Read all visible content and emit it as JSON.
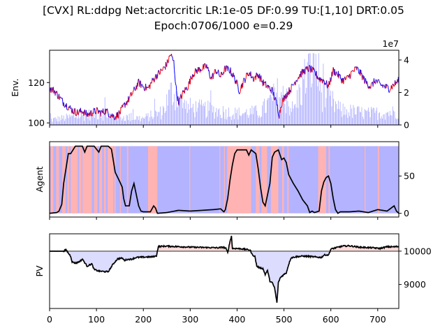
{
  "title_line1": "[CVX] RL:ddpg Net:actorcritic LR:1e-05 DF:0.99 TU:[1,10] DRT:0.05",
  "title_line2": "Epoch:0706/1000 e=0.29",
  "chart_data": [
    {
      "type": "line",
      "panel": "env",
      "ylabel": "Env.",
      "y_ticks": [
        "100",
        "120"
      ],
      "y_tick_values": [
        100,
        120
      ],
      "ylim": [
        99,
        136
      ],
      "right_axis_multiplier": "1e7",
      "right_y_ticks": [
        "0",
        "2",
        "4"
      ],
      "right_y_tick_values": [
        0,
        2,
        4
      ],
      "right_ylim": [
        0,
        4.6
      ],
      "x_tick_values": [
        0,
        100,
        200,
        300,
        400,
        500,
        600,
        700
      ],
      "xlim": [
        0,
        745
      ],
      "colors": {
        "price_up": "#ff0000",
        "price_down": "#0000ff",
        "volume": "#a9a9ff"
      },
      "price_anchor_points": [
        [
          0,
          117
        ],
        [
          10,
          116
        ],
        [
          20,
          113
        ],
        [
          30,
          110
        ],
        [
          40,
          108
        ],
        [
          50,
          106
        ],
        [
          60,
          105
        ],
        [
          70,
          106
        ],
        [
          80,
          104
        ],
        [
          90,
          105
        ],
        [
          100,
          106
        ],
        [
          110,
          105
        ],
        [
          120,
          106
        ],
        [
          130,
          104
        ],
        [
          140,
          103
        ],
        [
          150,
          105
        ],
        [
          160,
          109
        ],
        [
          170,
          112
        ],
        [
          180,
          116
        ],
        [
          190,
          120
        ],
        [
          200,
          118
        ],
        [
          210,
          117
        ],
        [
          220,
          121
        ],
        [
          230,
          124
        ],
        [
          240,
          126
        ],
        [
          250,
          129
        ],
        [
          258,
          134
        ],
        [
          265,
          130
        ],
        [
          270,
          117
        ],
        [
          275,
          110
        ],
        [
          285,
          115
        ],
        [
          295,
          118
        ],
        [
          305,
          124
        ],
        [
          315,
          126
        ],
        [
          325,
          127
        ],
        [
          335,
          128
        ],
        [
          345,
          122
        ],
        [
          355,
          126
        ],
        [
          365,
          123
        ],
        [
          375,
          127
        ],
        [
          385,
          126
        ],
        [
          395,
          122
        ],
        [
          405,
          116
        ],
        [
          415,
          121
        ],
        [
          425,
          125
        ],
        [
          435,
          122
        ],
        [
          445,
          124
        ],
        [
          455,
          120
        ],
        [
          465,
          118
        ],
        [
          475,
          116
        ],
        [
          485,
          109
        ],
        [
          490,
          104
        ],
        [
          495,
          110
        ],
        [
          505,
          114
        ],
        [
          515,
          117
        ],
        [
          525,
          121
        ],
        [
          535,
          124
        ],
        [
          545,
          126
        ],
        [
          555,
          127
        ],
        [
          565,
          125
        ],
        [
          575,
          122
        ],
        [
          585,
          121
        ],
        [
          595,
          118
        ],
        [
          605,
          126
        ],
        [
          615,
          124
        ],
        [
          625,
          121
        ],
        [
          635,
          122
        ],
        [
          645,
          125
        ],
        [
          655,
          127
        ],
        [
          665,
          124
        ],
        [
          675,
          120
        ],
        [
          685,
          118
        ],
        [
          695,
          121
        ],
        [
          705,
          119
        ],
        [
          715,
          118
        ],
        [
          725,
          117
        ],
        [
          735,
          119
        ],
        [
          745,
          121
        ]
      ],
      "volume_anchor_points": [
        [
          0,
          0.3
        ],
        [
          50,
          0.5
        ],
        [
          100,
          0.7
        ],
        [
          150,
          0.5
        ],
        [
          200,
          0.4
        ],
        [
          240,
          0.8
        ],
        [
          262,
          2.1
        ],
        [
          290,
          1.1
        ],
        [
          350,
          0.9
        ],
        [
          400,
          0.7
        ],
        [
          450,
          0.8
        ],
        [
          490,
          2.0
        ],
        [
          520,
          0.9
        ],
        [
          565,
          4.4
        ],
        [
          580,
          2.0
        ],
        [
          620,
          0.9
        ],
        [
          680,
          0.7
        ],
        [
          745,
          0.8
        ]
      ]
    },
    {
      "type": "line",
      "panel": "agent",
      "ylabel": "Agent",
      "right_y_ticks": [
        "0",
        "50"
      ],
      "right_y_tick_values": [
        0,
        50
      ],
      "ylim": [
        -5,
        96
      ],
      "xlim": [
        0,
        745
      ],
      "colors": {
        "line": "#000000",
        "buy_band": "#ffb3b3",
        "sell_band": "#b3b3ff"
      },
      "position_anchor_points": [
        [
          0,
          0
        ],
        [
          15,
          1
        ],
        [
          20,
          3
        ],
        [
          26,
          12
        ],
        [
          30,
          40
        ],
        [
          35,
          60
        ],
        [
          40,
          80
        ],
        [
          45,
          80
        ],
        [
          55,
          90
        ],
        [
          70,
          90
        ],
        [
          75,
          82
        ],
        [
          80,
          90
        ],
        [
          95,
          90
        ],
        [
          105,
          82
        ],
        [
          110,
          90
        ],
        [
          125,
          90
        ],
        [
          132,
          86
        ],
        [
          140,
          55
        ],
        [
          150,
          42
        ],
        [
          155,
          35
        ],
        [
          158,
          20
        ],
        [
          162,
          10
        ],
        [
          170,
          10
        ],
        [
          175,
          30
        ],
        [
          180,
          40
        ],
        [
          185,
          25
        ],
        [
          190,
          10
        ],
        [
          195,
          3
        ],
        [
          200,
          2
        ],
        [
          215,
          2
        ],
        [
          222,
          10
        ],
        [
          226,
          7
        ],
        [
          230,
          0
        ],
        [
          250,
          1
        ],
        [
          275,
          4
        ],
        [
          300,
          3
        ],
        [
          350,
          5
        ],
        [
          365,
          6
        ],
        [
          370,
          3
        ],
        [
          372,
          2
        ],
        [
          375,
          5
        ],
        [
          380,
          20
        ],
        [
          385,
          45
        ],
        [
          390,
          65
        ],
        [
          395,
          80
        ],
        [
          400,
          85
        ],
        [
          420,
          85
        ],
        [
          425,
          78
        ],
        [
          430,
          85
        ],
        [
          440,
          80
        ],
        [
          445,
          60
        ],
        [
          450,
          35
        ],
        [
          455,
          15
        ],
        [
          460,
          10
        ],
        [
          465,
          25
        ],
        [
          470,
          40
        ],
        [
          475,
          75
        ],
        [
          480,
          82
        ],
        [
          488,
          85
        ],
        [
          495,
          72
        ],
        [
          500,
          74
        ],
        [
          505,
          68
        ],
        [
          510,
          52
        ],
        [
          520,
          40
        ],
        [
          530,
          30
        ],
        [
          540,
          18
        ],
        [
          550,
          10
        ],
        [
          555,
          1
        ],
        [
          560,
          3
        ],
        [
          565,
          1
        ],
        [
          575,
          3
        ],
        [
          580,
          30
        ],
        [
          585,
          42
        ],
        [
          590,
          48
        ],
        [
          595,
          50
        ],
        [
          600,
          40
        ],
        [
          605,
          20
        ],
        [
          610,
          5
        ],
        [
          615,
          0
        ],
        [
          620,
          2
        ],
        [
          640,
          2
        ],
        [
          660,
          3
        ],
        [
          680,
          1
        ],
        [
          700,
          5
        ],
        [
          720,
          3
        ],
        [
          735,
          10
        ],
        [
          740,
          3
        ],
        [
          745,
          0
        ]
      ],
      "buy_bands": [
        [
          2,
          8
        ],
        [
          14,
          20
        ],
        [
          27,
          34
        ],
        [
          38,
          42
        ],
        [
          45,
          60
        ],
        [
          63,
          68
        ],
        [
          70,
          90
        ],
        [
          95,
          102
        ],
        [
          106,
          112
        ],
        [
          116,
          120
        ],
        [
          124,
          136
        ],
        [
          138,
          141
        ],
        [
          150,
          152
        ],
        [
          165,
          168
        ],
        [
          210,
          230
        ],
        [
          298,
          300
        ],
        [
          362,
          364
        ],
        [
          372,
          374
        ],
        [
          379,
          430
        ],
        [
          440,
          448
        ],
        [
          452,
          464
        ],
        [
          472,
          488
        ],
        [
          496,
          500
        ],
        [
          507,
          510
        ],
        [
          573,
          590
        ],
        [
          595,
          598
        ],
        [
          672,
          674
        ],
        [
          700,
          703
        ]
      ]
    },
    {
      "type": "line",
      "panel": "pv",
      "ylabel": "PV",
      "right_y_ticks": [
        "9000",
        "10000"
      ],
      "right_y_tick_values": [
        9000,
        10000
      ],
      "ylim": [
        8280,
        10520
      ],
      "baseline": 10000,
      "xlim": [
        0,
        745
      ],
      "x_ticks": [
        "0",
        "100",
        "200",
        "300",
        "400",
        "500",
        "600",
        "700"
      ],
      "colors": {
        "line": "#000000",
        "baseline": "#808080",
        "above_fill": "#ffdada",
        "below_fill": "#dcdcff"
      },
      "pv_anchor_points": [
        [
          0,
          10000
        ],
        [
          30,
          10000
        ],
        [
          35,
          10040
        ],
        [
          40,
          9940
        ],
        [
          45,
          9850
        ],
        [
          48,
          9680
        ],
        [
          55,
          9640
        ],
        [
          60,
          9660
        ],
        [
          65,
          9700
        ],
        [
          70,
          9760
        ],
        [
          80,
          9550
        ],
        [
          90,
          9620
        ],
        [
          95,
          9450
        ],
        [
          105,
          9400
        ],
        [
          115,
          9390
        ],
        [
          125,
          9380
        ],
        [
          135,
          9600
        ],
        [
          145,
          9770
        ],
        [
          155,
          9790
        ],
        [
          160,
          9720
        ],
        [
          165,
          9750
        ],
        [
          175,
          9760
        ],
        [
          185,
          9810
        ],
        [
          200,
          9820
        ],
        [
          220,
          9830
        ],
        [
          228,
          9860
        ],
        [
          232,
          10140
        ],
        [
          250,
          10150
        ],
        [
          300,
          10120
        ],
        [
          360,
          10100
        ],
        [
          370,
          10120
        ],
        [
          376,
          10080
        ],
        [
          380,
          9960
        ],
        [
          385,
          10300
        ],
        [
          388,
          10450
        ],
        [
          390,
          10080
        ],
        [
          400,
          10080
        ],
        [
          410,
          10070
        ],
        [
          420,
          10050
        ],
        [
          428,
          10030
        ],
        [
          432,
          9900
        ],
        [
          438,
          9840
        ],
        [
          442,
          9550
        ],
        [
          448,
          9500
        ],
        [
          455,
          9480
        ],
        [
          460,
          9300
        ],
        [
          465,
          9420
        ],
        [
          470,
          9100
        ],
        [
          475,
          9050
        ],
        [
          480,
          8900
        ],
        [
          485,
          8450
        ],
        [
          488,
          9050
        ],
        [
          492,
          9200
        ],
        [
          498,
          9280
        ],
        [
          505,
          9350
        ],
        [
          510,
          9600
        ],
        [
          515,
          9800
        ],
        [
          525,
          9830
        ],
        [
          540,
          9850
        ],
        [
          555,
          9840
        ],
        [
          570,
          9820
        ],
        [
          580,
          9810
        ],
        [
          585,
          9880
        ],
        [
          590,
          9890
        ],
        [
          595,
          9880
        ],
        [
          600,
          10060
        ],
        [
          610,
          10100
        ],
        [
          625,
          10150
        ],
        [
          640,
          10160
        ],
        [
          660,
          10120
        ],
        [
          675,
          10110
        ],
        [
          690,
          10100
        ],
        [
          705,
          10080
        ],
        [
          710,
          10100
        ],
        [
          720,
          10130
        ],
        [
          735,
          10130
        ],
        [
          745,
          10140
        ]
      ]
    }
  ]
}
